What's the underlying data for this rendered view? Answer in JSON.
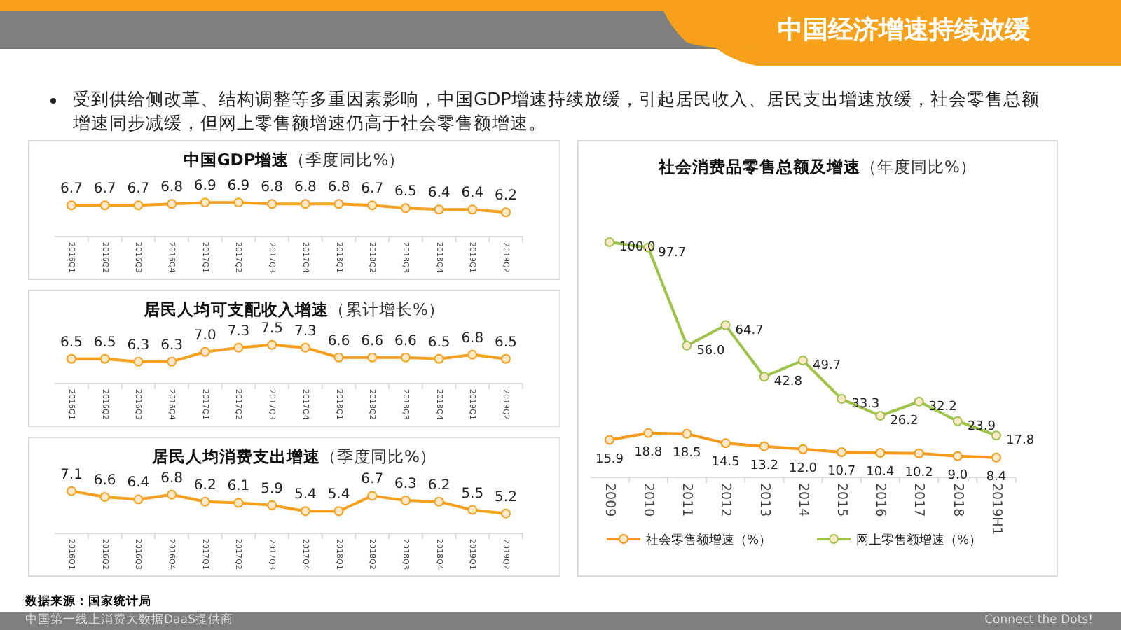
{
  "chart_data": [
    {
      "type": "other",
      "title": "中国经济增速持续放缓",
      "annotations": [
        "受到供给侧改革、结构调整等多重因素影响，中国GDP增速持续放缓，引起居民收入、居民支出增速放缓，社会零售总额增速同步减缓，但网上零售额增速仍高于社会零售额增速。",
        "数据来源：国家统计局",
        "中国第一线上消费大数据DaaS提供商",
        "Connect the Dots!"
      ]
    },
    {
      "type": "line",
      "title": "中国GDP增速",
      "subtitle": "（季度同比%）",
      "categories": [
        "2016Q1",
        "2016Q2",
        "2016Q3",
        "2016Q4",
        "2017Q1",
        "2017Q2",
        "2017Q3",
        "2017Q4",
        "2018Q1",
        "2018Q2",
        "2018Q3",
        "2018Q4",
        "2019Q1",
        "2019Q2"
      ],
      "marker": "circle",
      "series": [
        {
          "color": "#f5a01e",
          "values": [
            6.7,
            6.7,
            6.7,
            6.8,
            6.9,
            6.9,
            6.8,
            6.8,
            6.8,
            6.7,
            6.5,
            6.4,
            6.4,
            6.2
          ],
          "value_labels": [
            "6.7",
            "6.7",
            "6.7",
            "6.8",
            "6.9",
            "6.9",
            "6.8",
            "6.8",
            "6.8",
            "6.7",
            "6.5",
            "6.4",
            "6.4",
            "6.2"
          ]
        }
      ]
    },
    {
      "type": "line",
      "title": "居民人均可支配收入增速",
      "subtitle": "（累计增长%）",
      "categories": [
        "2016Q1",
        "2016Q2",
        "2016Q3",
        "2016Q4",
        "2017Q1",
        "2017Q2",
        "2017Q3",
        "2017Q4",
        "2018Q1",
        "2018Q2",
        "2018Q3",
        "2018Q4",
        "2019Q1",
        "2019Q2"
      ],
      "marker": "circle",
      "series": [
        {
          "color": "#f5a01e",
          "values": [
            6.5,
            6.5,
            6.3,
            6.3,
            7.0,
            7.3,
            7.5,
            7.3,
            6.6,
            6.6,
            6.6,
            6.5,
            6.8,
            6.5
          ],
          "value_labels": [
            "6.5",
            "6.5",
            "6.3",
            "6.3",
            "7.0",
            "7.3",
            "7.5",
            "7.3",
            "6.6",
            "6.6",
            "6.6",
            "6.5",
            "6.8",
            "6.5"
          ]
        }
      ]
    },
    {
      "type": "line",
      "title": "居民人均消费支出增速",
      "subtitle": "（季度同比%）",
      "categories": [
        "2016Q1",
        "2016Q2",
        "2016Q3",
        "2016Q4",
        "2017Q1",
        "2017Q2",
        "2017Q3",
        "2017Q4",
        "2018Q1",
        "2018Q2",
        "2018Q3",
        "2018Q4",
        "2019Q1",
        "2019Q2"
      ],
      "marker": "circle",
      "series": [
        {
          "color": "#f5a01e",
          "values": [
            7.1,
            6.6,
            6.4,
            6.8,
            6.2,
            6.1,
            5.9,
            5.4,
            5.4,
            6.7,
            6.3,
            6.2,
            5.5,
            5.2
          ],
          "value_labels": [
            "7.1",
            "6.6",
            "6.4",
            "6.8",
            "6.2",
            "6.1",
            "5.9",
            "5.4",
            "5.4",
            "6.7",
            "6.3",
            "6.2",
            "5.5",
            "5.2"
          ]
        }
      ]
    },
    {
      "type": "line",
      "title": "社会消费品零售总额及增速",
      "subtitle": "（年度同比%）",
      "categories": [
        "2009",
        "2010",
        "2011",
        "2012",
        "2013",
        "2014",
        "2015",
        "2016",
        "2017",
        "2018",
        "2019H1"
      ],
      "marker": "circle",
      "legend": "bottom",
      "series": [
        {
          "name": "社会零售额增速（%）",
          "color": "#f59a1b",
          "values": [
            15.9,
            18.8,
            18.5,
            14.5,
            13.2,
            12.0,
            10.7,
            10.4,
            10.2,
            9.0,
            8.4
          ],
          "value_labels": [
            "15.9",
            "18.8",
            "18.5",
            "14.5",
            "13.2",
            "12.0",
            "10.7",
            "10.4",
            "10.2",
            "9.0",
            "8.4"
          ]
        },
        {
          "name": "网上零售额增速（%）",
          "color": "#9dc34a",
          "values": [
            100.0,
            97.7,
            56.0,
            64.7,
            42.8,
            49.7,
            33.3,
            26.2,
            32.2,
            23.9,
            17.8
          ],
          "value_labels": [
            "100.0",
            "97.7",
            "56.0",
            "64.7",
            "42.8",
            "49.7",
            "33.3",
            "26.2",
            "32.2",
            "23.9",
            "17.8"
          ]
        }
      ]
    }
  ]
}
